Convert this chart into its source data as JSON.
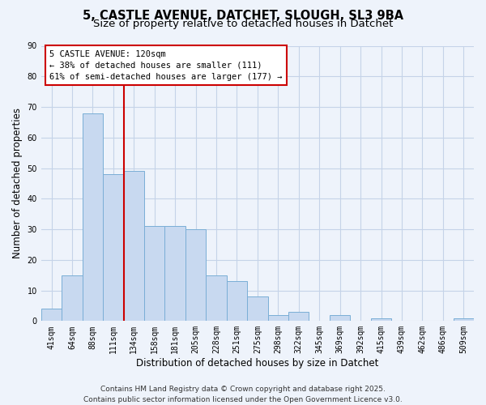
{
  "title": "5, CASTLE AVENUE, DATCHET, SLOUGH, SL3 9BA",
  "subtitle": "Size of property relative to detached houses in Datchet",
  "xlabel": "Distribution of detached houses by size in Datchet",
  "ylabel": "Number of detached properties",
  "bar_labels": [
    "41sqm",
    "64sqm",
    "88sqm",
    "111sqm",
    "134sqm",
    "158sqm",
    "181sqm",
    "205sqm",
    "228sqm",
    "251sqm",
    "275sqm",
    "298sqm",
    "322sqm",
    "345sqm",
    "369sqm",
    "392sqm",
    "415sqm",
    "439sqm",
    "462sqm",
    "486sqm",
    "509sqm"
  ],
  "bar_values": [
    4,
    15,
    68,
    48,
    49,
    31,
    31,
    30,
    15,
    13,
    8,
    2,
    3,
    0,
    2,
    0,
    1,
    0,
    0,
    0,
    1
  ],
  "bar_color": "#c8d9f0",
  "bar_edge_color": "#7aaed6",
  "ylim": [
    0,
    90
  ],
  "yticks": [
    0,
    10,
    20,
    30,
    40,
    50,
    60,
    70,
    80,
    90
  ],
  "vline_index": 3,
  "vline_color": "#cc0000",
  "annotation_title": "5 CASTLE AVENUE: 120sqm",
  "annotation_line1": "← 38% of detached houses are smaller (111)",
  "annotation_line2": "61% of semi-detached houses are larger (177) →",
  "footer_line1": "Contains HM Land Registry data © Crown copyright and database right 2025.",
  "footer_line2": "Contains public sector information licensed under the Open Government Licence v3.0.",
  "bg_color": "#eef3fb",
  "grid_color": "#c5d3e8",
  "title_fontsize": 10.5,
  "subtitle_fontsize": 9.5,
  "axis_label_fontsize": 8.5,
  "tick_fontsize": 7,
  "annotation_fontsize": 7.5,
  "footer_fontsize": 6.5
}
